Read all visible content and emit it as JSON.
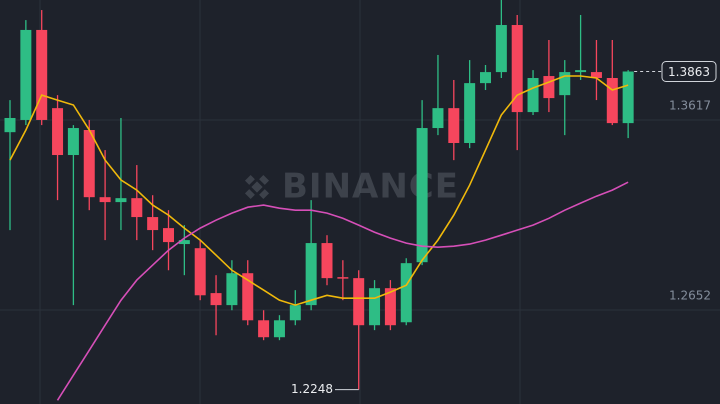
{
  "chart_data": {
    "type": "candlestick",
    "watermark": "BINANCE",
    "up_color": "#2ebd85",
    "down_color": "#f6465d",
    "open": [
      1.3555,
      1.3617,
      1.4074,
      1.3677,
      1.3439,
      1.3566,
      1.3225,
      1.32,
      1.322,
      1.3124,
      1.3068,
      1.2987,
      1.2966,
      1.2738,
      1.2677,
      1.2839,
      1.26,
      1.2514,
      1.26,
      1.2677,
      1.2992,
      1.2819,
      1.2814,
      1.2575,
      1.2763,
      1.259,
      1.2895,
      1.3576,
      1.3677,
      1.35,
      1.3804,
      1.386,
      1.4099,
      1.3657,
      1.384,
      1.3743,
      1.386,
      1.386,
      1.383,
      1.3601
    ],
    "close": [
      1.3627,
      1.4074,
      1.3617,
      1.3439,
      1.3576,
      1.3225,
      1.32,
      1.322,
      1.3124,
      1.3058,
      1.2997,
      1.3007,
      1.2727,
      1.2677,
      1.2839,
      1.26,
      1.2514,
      1.26,
      1.2677,
      1.2992,
      1.2814,
      1.2814,
      1.2575,
      1.2763,
      1.2575,
      1.289,
      1.3576,
      1.3677,
      1.35,
      1.3804,
      1.386,
      1.4099,
      1.3657,
      1.383,
      1.3728,
      1.386,
      1.387,
      1.383,
      1.3601,
      1.3863
    ],
    "high": [
      1.3718,
      1.4124,
      1.4175,
      1.3743,
      1.3591,
      1.3617,
      1.3464,
      1.3627,
      1.3388,
      1.3235,
      1.3159,
      1.3083,
      1.3007,
      1.2829,
      1.2905,
      1.2905,
      1.2651,
      1.2626,
      1.2753,
      1.321,
      1.3032,
      1.2905,
      1.2854,
      1.2804,
      1.2804,
      1.2915,
      1.3718,
      1.3947,
      1.382,
      1.3921,
      1.3896,
      1.4226,
      1.415,
      1.387,
      1.4023,
      1.3921,
      1.415,
      1.4023,
      1.4023,
      1.387
    ],
    "low": [
      1.3058,
      1.3591,
      1.3591,
      1.321,
      1.2677,
      1.3159,
      1.3007,
      1.3058,
      1.3007,
      1.2956,
      1.2854,
      1.2829,
      1.2702,
      1.2524,
      1.2651,
      1.2575,
      1.2499,
      1.2499,
      1.2575,
      1.2651,
      1.2778,
      1.2702,
      1.2248,
      1.255,
      1.255,
      1.2575,
      1.288,
      1.354,
      1.3413,
      1.3474,
      1.3769,
      1.383,
      1.3464,
      1.3642,
      1.3657,
      1.354,
      1.382,
      1.3718,
      1.3591,
      1.3525
    ],
    "overlays": [
      {
        "color": "#f0b90b",
        "values": [
          1.3413,
          1.3566,
          1.3743,
          1.3718,
          1.3693,
          1.3566,
          1.3413,
          1.3312,
          1.3261,
          1.3185,
          1.3134,
          1.3068,
          1.3007,
          1.2931,
          1.2854,
          1.2804,
          1.2753,
          1.2702,
          1.2677,
          1.2702,
          1.2727,
          1.2712,
          1.2712,
          1.2712,
          1.2743,
          1.2778,
          1.2905,
          1.3007,
          1.3134,
          1.3286,
          1.3464,
          1.3642,
          1.3743,
          1.3779,
          1.3809,
          1.384,
          1.384,
          1.383,
          1.3769,
          1.3794
        ]
      },
      {
        "color": "#d64fb8",
        "values": [
          null,
          null,
          null,
          1.2194,
          1.2321,
          1.2448,
          1.2575,
          1.2702,
          1.2804,
          1.288,
          1.2956,
          1.3017,
          1.3068,
          1.3108,
          1.3144,
          1.3174,
          1.3185,
          1.3169,
          1.3159,
          1.3159,
          1.3144,
          1.3118,
          1.3083,
          1.3047,
          1.3017,
          1.2992,
          1.2976,
          1.2971,
          1.2976,
          1.2987,
          1.3007,
          1.3032,
          1.3058,
          1.3083,
          1.3118,
          1.3159,
          1.3195,
          1.323,
          1.3261,
          1.3301
        ]
      }
    ],
    "ylim": [
      1.2175,
      1.4226
    ],
    "yticks": [
      1.3617,
      1.2652
    ],
    "last_price": 1.3863,
    "low_marker": 1.2248,
    "grid": true
  }
}
